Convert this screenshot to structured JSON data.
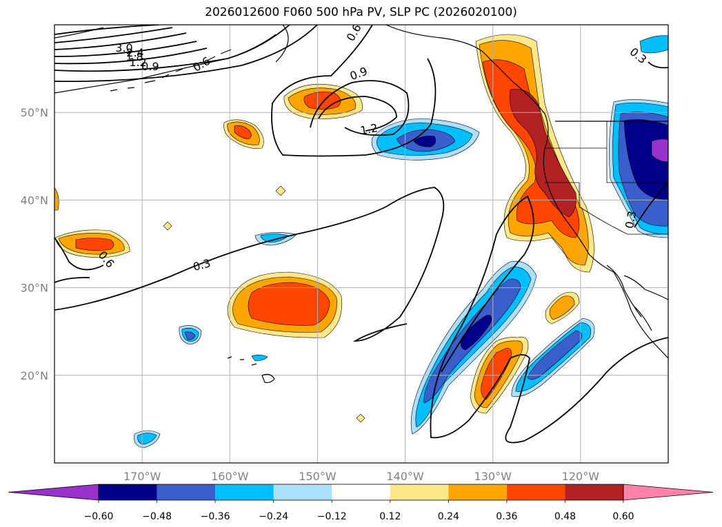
{
  "chart_data": {
    "type": "map",
    "title": "2026012600 F060 500 hPa PV, SLP PC (2026020100)",
    "x_ticks": [
      "170°W",
      "160°W",
      "150°W",
      "140°W",
      "130°W",
      "120°W"
    ],
    "x_tick_values": [
      -170,
      -160,
      -150,
      -140,
      -130,
      -120
    ],
    "y_ticks": [
      "50°N",
      "40°N",
      "30°N",
      "20°N"
    ],
    "y_tick_values": [
      50,
      40,
      30,
      20
    ],
    "lon_range": [
      -180,
      -110
    ],
    "lat_range": [
      10,
      60
    ],
    "grid": true,
    "colorbar": {
      "position": "bottom",
      "levels": [
        "−0.60",
        "−0.48",
        "−0.36",
        "−0.24",
        "−0.12",
        "0.12",
        "0.24",
        "0.36",
        "0.48",
        "0.60"
      ],
      "level_values": [
        -0.6,
        -0.48,
        -0.36,
        -0.24,
        -0.12,
        0.12,
        0.24,
        0.36,
        0.48,
        0.6
      ],
      "colors": [
        "#9932CC",
        "#00008B",
        "#3A5FCD",
        "#00BFFF",
        "#ADDFFF",
        "#FFFFFF",
        "#FFE88A",
        "#FFA500",
        "#FF4500",
        "#B22222",
        "#FF82AB"
      ]
    },
    "contour_labels": [
      "3.0",
      "2.4",
      "1.8",
      "1.2",
      "0.9",
      "0.6",
      "0.6",
      "0.9",
      "1.2",
      "0.3",
      "0.6",
      "0.3",
      "0.3"
    ]
  }
}
